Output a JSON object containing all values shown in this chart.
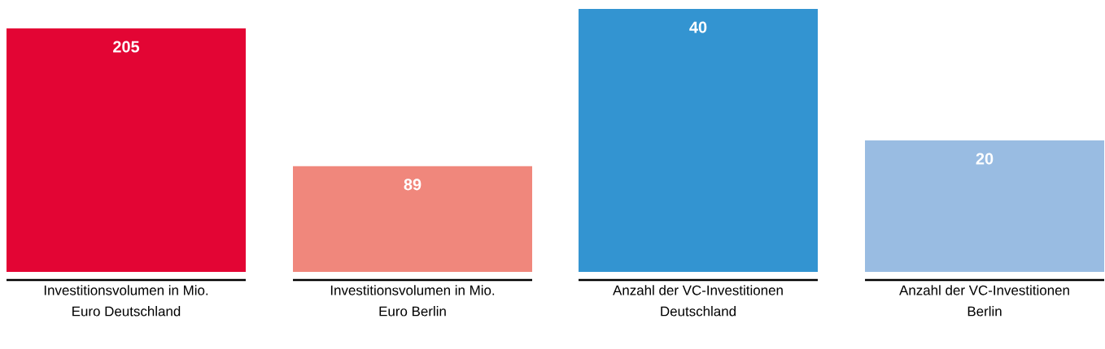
{
  "chart_data": [
    {
      "type": "bar",
      "categories": [
        "Investitionsvolumen in Mio. Euro Deutschland",
        "Investitionsvolumen in Mio. Euro Berlin"
      ],
      "values": [
        205,
        89
      ],
      "colors": [
        "#e30534",
        "#f0877c"
      ],
      "data_labels": true
    },
    {
      "type": "bar",
      "categories": [
        "Anzahl der VC-Investitionen Deutschland",
        "Anzahl der VC-Investitionen Berlin"
      ],
      "values": [
        40,
        20
      ],
      "colors": [
        "#3394d1",
        "#99bce2"
      ],
      "data_labels": true
    }
  ]
}
